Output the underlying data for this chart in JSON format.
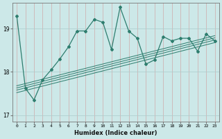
{
  "title": "",
  "xlabel": "Humidex (Indice chaleur)",
  "ylabel": "",
  "background_color": "#cce8e8",
  "line_color": "#2e7d6e",
  "grid_color": "#aacccc",
  "xlim": [
    -0.5,
    23.5
  ],
  "ylim": [
    16.85,
    19.6
  ],
  "yticks": [
    17,
    18,
    19
  ],
  "xtick_labels": [
    "0",
    "1",
    "2",
    "3",
    "4",
    "5",
    "6",
    "7",
    "8",
    "9",
    "10",
    "11",
    "12",
    "13",
    "14",
    "15",
    "16",
    "17",
    "18",
    "19",
    "20",
    "21",
    "22",
    "23"
  ],
  "main_line_x": [
    0,
    1,
    2,
    3,
    4,
    5,
    6,
    7,
    8,
    9,
    10,
    11,
    12,
    13,
    14,
    15,
    16,
    17,
    18,
    19,
    20,
    21,
    22,
    23
  ],
  "main_line_y": [
    19.3,
    17.62,
    17.35,
    17.82,
    18.05,
    18.3,
    18.58,
    18.95,
    18.95,
    19.22,
    19.15,
    18.52,
    19.5,
    18.95,
    18.78,
    18.18,
    18.28,
    18.82,
    18.72,
    18.78,
    18.78,
    18.48,
    18.88,
    18.72
  ],
  "linear_lines": [
    {
      "x": [
        0,
        23
      ],
      "y": [
        17.52,
        18.68
      ]
    },
    {
      "x": [
        0,
        23
      ],
      "y": [
        17.58,
        18.74
      ]
    },
    {
      "x": [
        0,
        23
      ],
      "y": [
        17.63,
        18.79
      ]
    },
    {
      "x": [
        0,
        23
      ],
      "y": [
        17.68,
        18.84
      ]
    }
  ]
}
